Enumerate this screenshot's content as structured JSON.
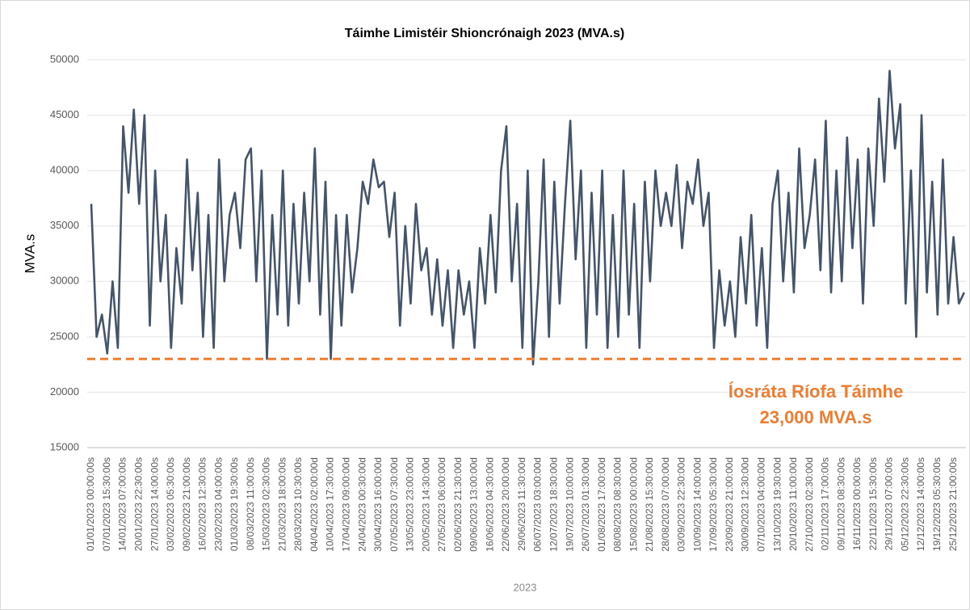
{
  "chart_data": {
    "type": "line",
    "title": "Táimhe Limistéir Shioncrónaigh 2023 (MVA.s)",
    "y_label": "MVA.s",
    "x_label": "2023",
    "categories": [
      "01/01/2023 00:00:00s",
      null,
      null,
      "07/01/2023 15:30:00s",
      null,
      null,
      "14/01/2023 07:00:00s",
      null,
      null,
      "20/01/2023 22:30:00s",
      null,
      null,
      "27/01/2023 14:00:00s",
      null,
      null,
      "03/02/2023 05:30:00s",
      null,
      null,
      "09/02/2023 21:00:00s",
      null,
      null,
      "16/02/2023 12:30:00s",
      null,
      null,
      "23/02/2023 04:00:00s",
      null,
      null,
      "01/03/2023 19:30:00s",
      null,
      null,
      "08/03/2023 11:00:00s",
      null,
      null,
      "15/03/2023 02:30:00s",
      null,
      null,
      "21/03/2023 18:00:00s",
      null,
      null,
      "28/03/2023 10:30:00s",
      null,
      null,
      "04/04/2023 02:00:00d",
      null,
      null,
      "10/04/2023 17:30:00d",
      null,
      null,
      "17/04/2023 09:00:00d",
      null,
      null,
      "24/04/2023 00:30:00d",
      null,
      null,
      "30/04/2023 16:00:00d",
      null,
      null,
      "07/05/2023 07:30:00d",
      null,
      null,
      "13/05/2023 23:00:00d",
      null,
      null,
      "20/05/2023 14:30:00d",
      null,
      null,
      "27/05/2023 06:00:00d",
      null,
      null,
      "02/06/2023 21:30:00d",
      null,
      null,
      "09/06/2023 13:00:00d",
      null,
      null,
      "16/06/2023 04:30:00d",
      null,
      null,
      "22/06/2023 20:00:00d",
      null,
      null,
      "29/06/2023 11:30:00d",
      null,
      null,
      "06/07/2023 03:00:00d",
      null,
      null,
      "12/07/2023 18:30:00d",
      null,
      null,
      "19/07/2023 10:00:00d",
      null,
      null,
      "26/07/2023 01:30:00d",
      null,
      null,
      "01/08/2023 17:00:00d",
      null,
      null,
      "08/08/2023 08:30:00d",
      null,
      null,
      "15/08/2023 00:00:00d",
      null,
      null,
      "21/08/2023 15:30:00d",
      null,
      null,
      "28/08/2023 07:00:00d",
      null,
      null,
      "03/09/2023 22:30:00d",
      null,
      null,
      "10/09/2023 14:00:00d",
      null,
      null,
      "17/09/2023 05:30:00d",
      null,
      null,
      "23/09/2023 21:00:00d",
      null,
      null,
      "30/09/2023 12:30:00d",
      null,
      null,
      "07/10/2023 04:00:00d",
      null,
      null,
      "13/10/2023 19:30:00d",
      null,
      null,
      "20/10/2023 11:00:00d",
      null,
      null,
      "27/10/2023 02:30:00d",
      null,
      null,
      "02/11/2023 17:00:00s",
      null,
      null,
      "09/11/2023 08:30:00s",
      null,
      null,
      "16/11/2023 00:00:00s",
      null,
      null,
      "22/11/2023 15:30:00s",
      null,
      null,
      "29/11/2023 07:00:00s",
      null,
      null,
      "05/12/2023 22:30:00s",
      null,
      null,
      "12/12/2023 14:00:00s",
      null,
      null,
      "19/12/2023 05:30:00s",
      null,
      null,
      "25/12/2023 21:00:00s",
      null,
      null
    ],
    "values": [
      37000,
      25000,
      27000,
      23500,
      30000,
      24000,
      44000,
      38000,
      45500,
      37000,
      45000,
      26000,
      40000,
      30000,
      36000,
      24000,
      33000,
      28000,
      41000,
      31000,
      38000,
      25000,
      36000,
      24000,
      41000,
      30000,
      36000,
      38000,
      33000,
      41000,
      42000,
      30000,
      40000,
      23000,
      36000,
      27000,
      40000,
      26000,
      37000,
      28000,
      38000,
      30000,
      42000,
      27000,
      39000,
      23000,
      36000,
      26000,
      36000,
      29000,
      33000,
      39000,
      37000,
      41000,
      38500,
      39000,
      34000,
      38000,
      26000,
      35000,
      28000,
      37000,
      31000,
      33000,
      27000,
      32000,
      26000,
      31000,
      24000,
      31000,
      27000,
      30000,
      24000,
      33000,
      28000,
      36000,
      29000,
      40000,
      44000,
      30000,
      37000,
      24000,
      40000,
      22500,
      30000,
      41000,
      25000,
      39000,
      28000,
      37000,
      44500,
      32000,
      40000,
      24000,
      38000,
      27000,
      40000,
      24000,
      36000,
      25000,
      40000,
      27000,
      37000,
      24000,
      39000,
      30000,
      40000,
      35000,
      38000,
      35000,
      40500,
      33000,
      39000,
      37000,
      41000,
      35000,
      38000,
      24000,
      31000,
      26000,
      30000,
      25000,
      34000,
      28000,
      36000,
      26000,
      33000,
      24000,
      37000,
      40000,
      30000,
      38000,
      29000,
      42000,
      33000,
      36000,
      41000,
      31000,
      44500,
      29000,
      40000,
      30000,
      43000,
      33000,
      41000,
      28000,
      42000,
      35000,
      46500,
      39000,
      49000,
      42000,
      46000,
      28000,
      40000,
      25000,
      45000,
      29000,
      39000,
      27000,
      41000,
      28000,
      34000,
      28000,
      29000
    ],
    "color": "#44546a",
    "ylim": [
      15000,
      50000
    ],
    "yticks": [
      15000,
      20000,
      25000,
      30000,
      35000,
      40000,
      45000,
      50000
    ],
    "grid": true,
    "threshold": {
      "value": 23000,
      "color": "#ed7d31",
      "label": [
        "Íosráta Ríofa Táimhe",
        "23,000 MVA.s"
      ]
    }
  }
}
